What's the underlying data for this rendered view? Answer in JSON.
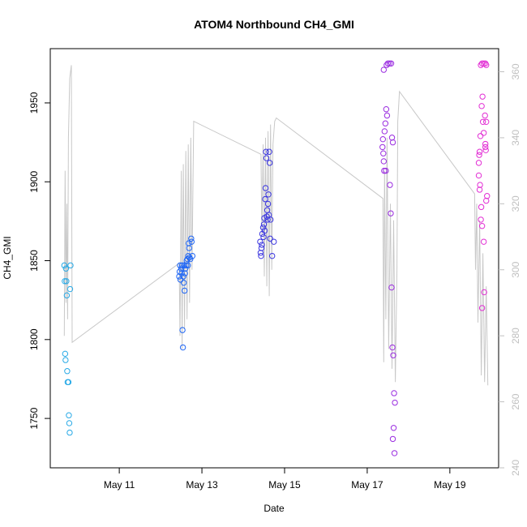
{
  "chart_data": {
    "type": "scatter",
    "title": "ATOM4 Northbound CH4_GMI",
    "x_label": "Date",
    "y_label": "CH4_GMI",
    "xlim": [
      9.33,
      20.18
    ],
    "xticks": [
      {
        "value": 11,
        "label": "May 11"
      },
      {
        "value": 13,
        "label": "May 13"
      },
      {
        "value": 15,
        "label": "May 15"
      },
      {
        "value": 17,
        "label": "May 17"
      },
      {
        "value": 19,
        "label": "May 19"
      }
    ],
    "ylim": [
      1718.7,
      1984.4
    ],
    "yticks": [
      1750,
      1800,
      1850,
      1900,
      1950
    ],
    "y2lim": [
      240,
      367
    ],
    "y2ticks": [
      240,
      260,
      280,
      300,
      320,
      340,
      360
    ],
    "y2_color": "#c0c0c0",
    "series": [
      {
        "type": "line",
        "axis": "y2",
        "color": "#c8c8c8",
        "x": [
          9.67,
          9.69,
          9.71,
          9.73,
          9.75,
          9.77,
          9.8,
          9.84,
          9.86,
          12.45,
          12.47,
          12.5,
          12.52,
          12.55,
          12.58,
          12.61,
          12.64,
          12.67,
          12.7,
          12.73,
          12.76,
          12.8,
          14.43,
          14.45,
          14.48,
          14.51,
          14.54,
          14.57,
          14.6,
          14.63,
          14.66,
          14.69,
          14.72,
          14.76,
          14.8,
          17.38,
          17.4,
          17.42,
          17.45,
          17.48,
          17.52,
          17.56,
          17.6,
          17.64,
          17.68,
          17.72,
          17.74,
          17.78,
          19.6,
          19.62,
          19.65,
          19.68,
          19.72,
          19.76,
          19.8,
          19.84,
          19.88,
          19.92
        ],
        "values": [
          280,
          330,
          290,
          320,
          285,
          340,
          358,
          362,
          278,
          302,
          280,
          330,
          276,
          332,
          282,
          336,
          285,
          338,
          290,
          340,
          300,
          345,
          335,
          310,
          338,
          298,
          340,
          295,
          342,
          292,
          344,
          300,
          338,
          345,
          346,
          321.6,
          272,
          330,
          285,
          340,
          276,
          320,
          270,
          315,
          266,
          300,
          345,
          354,
          323,
          300,
          320,
          284,
          315,
          268,
          305,
          266,
          295,
          265
        ]
      },
      {
        "type": "scatter",
        "color": "#27a9e6",
        "x": [
          9.67,
          9.68,
          9.69,
          9.7,
          9.71,
          9.72,
          9.73,
          9.74,
          9.75,
          9.77,
          9.78,
          9.79,
          9.8,
          9.81,
          9.82
        ],
        "values": [
          1847,
          1837,
          1791,
          1787,
          1845,
          1837,
          1828,
          1780,
          1773,
          1773,
          1752,
          1747,
          1741,
          1832,
          1847
        ]
      },
      {
        "type": "scatter",
        "color": "#1f66f5",
        "x": [
          12.45,
          12.46,
          12.47,
          12.48,
          12.5,
          12.51,
          12.52,
          12.53,
          12.54,
          12.55,
          12.56,
          12.57,
          12.58,
          12.59,
          12.6,
          12.62,
          12.63,
          12.65,
          12.66,
          12.67,
          12.68,
          12.69,
          12.7,
          12.72,
          12.74,
          12.75,
          12.77
        ],
        "values": [
          1840,
          1843,
          1847,
          1838,
          1845,
          1842,
          1847,
          1806,
          1795,
          1840,
          1836,
          1847,
          1831,
          1842,
          1845,
          1847,
          1850,
          1851,
          1847,
          1853,
          1861,
          1858,
          1852,
          1851,
          1864,
          1862,
          1853
        ]
      },
      {
        "type": "scatter",
        "color": "#3a35e0",
        "x": [
          14.41,
          14.42,
          14.43,
          14.44,
          14.45,
          14.46,
          14.48,
          14.49,
          14.5,
          14.51,
          14.52,
          14.53,
          14.54,
          14.55,
          14.56,
          14.57,
          14.58,
          14.59,
          14.6,
          14.61,
          14.62,
          14.63,
          14.64,
          14.65,
          14.66,
          14.7,
          14.74
        ],
        "values": [
          1862,
          1855,
          1853,
          1858,
          1860,
          1867,
          1871,
          1865,
          1873,
          1877,
          1869,
          1889,
          1896,
          1919,
          1915,
          1878,
          1882,
          1876,
          1886,
          1892,
          1879,
          1919,
          1912,
          1864,
          1876,
          1853,
          1862
        ]
      },
      {
        "type": "scatter",
        "color": "#9a2ce0",
        "x": [
          17.37,
          17.38,
          17.39,
          17.4,
          17.41,
          17.42,
          17.44,
          17.46,
          17.48,
          17.47,
          17.5,
          17.54,
          17.58,
          17.4,
          17.6,
          17.62,
          17.55,
          17.57,
          17.59,
          17.61,
          17.63,
          17.65,
          17.67,
          17.64,
          17.62,
          17.66,
          17.45
        ],
        "values": [
          1922,
          1927,
          1918,
          1913,
          1907,
          1932,
          1937,
          1946,
          1942,
          1974,
          1975,
          1975,
          1975,
          1971,
          1928,
          1925,
          1898,
          1880,
          1833,
          1795,
          1790,
          1766,
          1760,
          1744,
          1737,
          1728,
          1907
        ]
      },
      {
        "type": "scatter",
        "color": "#e22ed4",
        "x": [
          19.75,
          19.78,
          19.82,
          19.86,
          19.88,
          19.79,
          19.77,
          19.85,
          19.8,
          19.88,
          19.82,
          19.74,
          19.86,
          19.87,
          19.72,
          19.71,
          19.7,
          19.7,
          19.73,
          19.76,
          19.75,
          19.78,
          19.82,
          19.9,
          19.88,
          19.83,
          19.78,
          19.72,
          19.86
        ],
        "values": [
          1974,
          1975,
          1975,
          1975,
          1974,
          1954,
          1948,
          1942,
          1938,
          1938,
          1931,
          1929,
          1924,
          1920,
          1919,
          1917,
          1912,
          1904,
          1898,
          1884,
          1876,
          1872,
          1862,
          1891,
          1888,
          1830,
          1820,
          1895,
          1922
        ]
      }
    ]
  }
}
